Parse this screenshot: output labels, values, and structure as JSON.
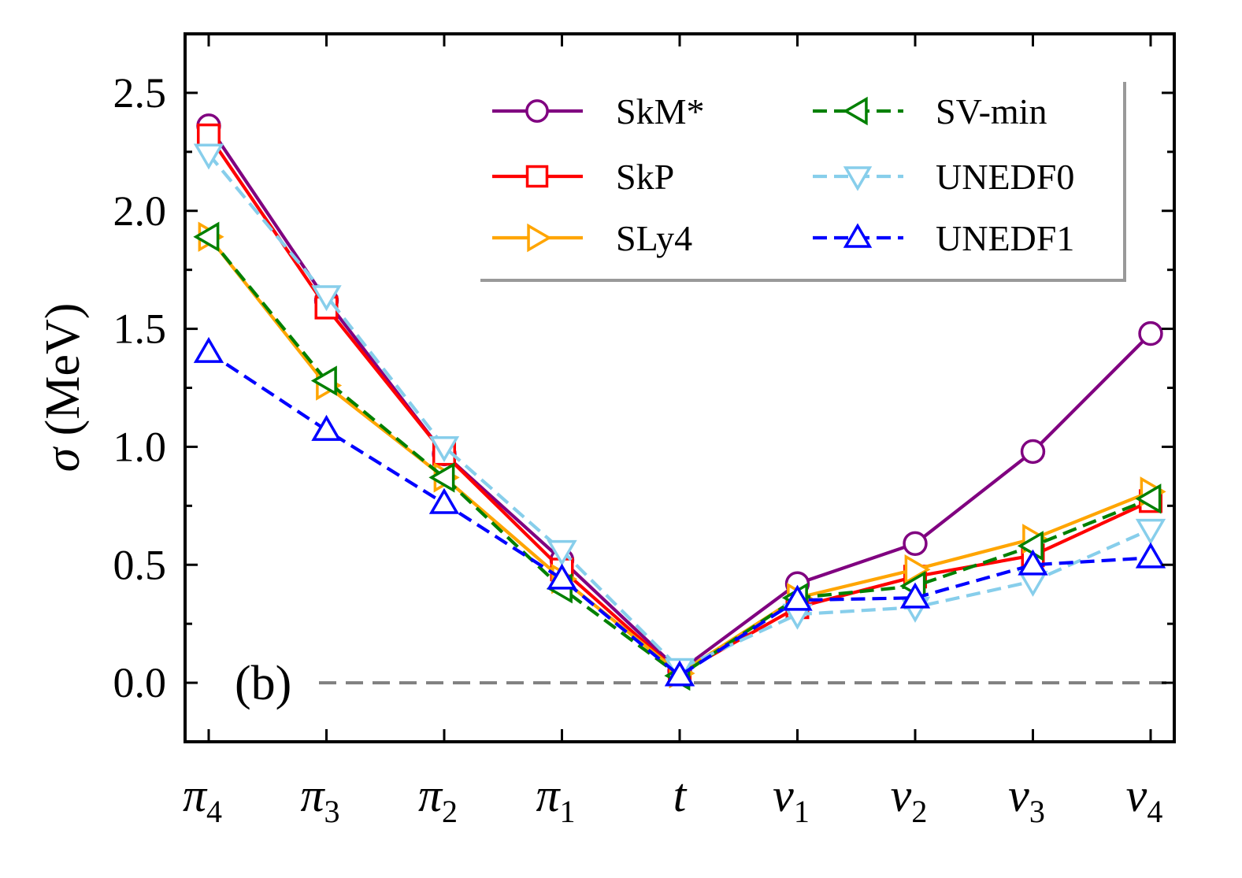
{
  "chart_data": {
    "type": "line",
    "panel_label": "(b)",
    "ylabel_symbol": "σ",
    "ylabel_unit": "(MeV)",
    "ylim": [
      -0.25,
      2.75
    ],
    "yticks": [
      0.0,
      0.5,
      1.0,
      1.5,
      2.0,
      2.5
    ],
    "ytick_labels": [
      "0.0",
      "0.5",
      "1.0",
      "1.5",
      "2.0",
      "2.5"
    ],
    "categories": [
      {
        "base": "π",
        "sub": "4"
      },
      {
        "base": "π",
        "sub": "3"
      },
      {
        "base": "π",
        "sub": "2"
      },
      {
        "base": "π",
        "sub": "1"
      },
      {
        "base": "t",
        "sub": ""
      },
      {
        "base": "ν",
        "sub": "1"
      },
      {
        "base": "ν",
        "sub": "2"
      },
      {
        "base": "ν",
        "sub": "3"
      },
      {
        "base": "ν",
        "sub": "4"
      }
    ],
    "reference_line": 0.0,
    "legend_position": "top-right",
    "series": [
      {
        "name": "SkM*",
        "color": "#800080",
        "marker": "circle",
        "dash": false,
        "values": [
          2.36,
          1.62,
          0.97,
          0.52,
          0.05,
          0.42,
          0.59,
          0.98,
          1.48
        ]
      },
      {
        "name": "SkP",
        "color": "#ff0000",
        "marker": "square",
        "dash": false,
        "values": [
          2.32,
          1.59,
          0.97,
          0.48,
          0.04,
          0.32,
          0.45,
          0.54,
          0.77
        ]
      },
      {
        "name": "SLy4",
        "color": "#ffa500",
        "marker": "triangle-right",
        "dash": false,
        "values": [
          1.89,
          1.26,
          0.87,
          0.44,
          0.04,
          0.36,
          0.48,
          0.61,
          0.81
        ]
      },
      {
        "name": "SV-min",
        "color": "#008000",
        "marker": "triangle-left",
        "dash": true,
        "values": [
          1.89,
          1.28,
          0.87,
          0.4,
          0.03,
          0.36,
          0.41,
          0.58,
          0.78
        ]
      },
      {
        "name": "UNEDF0",
        "color": "#87ceeb",
        "marker": "triangle-down",
        "dash": true,
        "values": [
          2.24,
          1.64,
          1.0,
          0.56,
          0.06,
          0.29,
          0.32,
          0.43,
          0.65
        ]
      },
      {
        "name": "UNEDF1",
        "color": "#0000ff",
        "marker": "triangle-up",
        "dash": true,
        "values": [
          1.4,
          1.07,
          0.76,
          0.44,
          0.03,
          0.35,
          0.36,
          0.5,
          0.53
        ]
      }
    ]
  }
}
